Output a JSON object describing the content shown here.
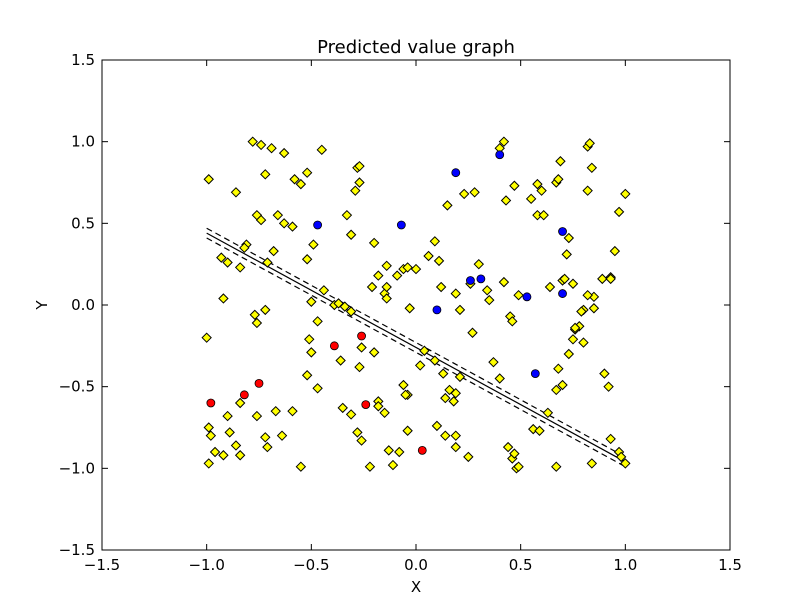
{
  "chart_data": {
    "type": "scatter",
    "title": "Predicted value graph",
    "xlabel": "X",
    "ylabel": "Y",
    "xlim": [
      -1.5,
      1.5
    ],
    "ylim": [
      -1.5,
      1.5
    ],
    "xticks": [
      "−1.5",
      "−1.0",
      "−0.5",
      "0.0",
      "0.5",
      "1.0",
      "1.5"
    ],
    "yticks": [
      "−1.5",
      "−1.0",
      "−0.5",
      "0.0",
      "0.5",
      "1.0",
      "1.5"
    ],
    "grid": false,
    "colors": {
      "yellow": "#ffff00",
      "blue": "#0000ff",
      "red": "#ff0000",
      "edge": "#000000"
    },
    "series": [
      {
        "marker": "diamond",
        "color": "#ffff00",
        "points": [
          [
            -0.99,
            0.77
          ],
          [
            -0.78,
            1.0
          ],
          [
            -0.74,
            0.98
          ],
          [
            -0.69,
            0.96
          ],
          [
            -0.63,
            0.93
          ],
          [
            -0.45,
            0.95
          ],
          [
            -0.28,
            0.84
          ],
          [
            -0.27,
            0.85
          ],
          [
            0.4,
            0.96
          ],
          [
            0.42,
            1.0
          ],
          [
            0.69,
            0.88
          ],
          [
            0.82,
            0.97
          ],
          [
            0.83,
            0.99
          ],
          [
            -0.86,
            0.69
          ],
          [
            -0.72,
            0.8
          ],
          [
            -0.58,
            0.77
          ],
          [
            -0.55,
            0.74
          ],
          [
            -0.52,
            0.81
          ],
          [
            -0.29,
            0.7
          ],
          [
            -0.27,
            0.75
          ],
          [
            -0.2,
            0.38
          ],
          [
            0.15,
            0.61
          ],
          [
            0.23,
            0.68
          ],
          [
            0.28,
            0.69
          ],
          [
            0.43,
            0.64
          ],
          [
            0.47,
            0.73
          ],
          [
            0.55,
            0.65
          ],
          [
            0.58,
            0.74
          ],
          [
            0.6,
            0.7
          ],
          [
            0.67,
            0.75
          ],
          [
            0.68,
            0.77
          ],
          [
            0.84,
            0.84
          ],
          [
            1.0,
            0.68
          ],
          [
            -0.76,
            0.55
          ],
          [
            -0.74,
            0.52
          ],
          [
            -0.66,
            0.55
          ],
          [
            -0.63,
            0.5
          ],
          [
            -0.59,
            0.48
          ],
          [
            -0.81,
            0.37
          ],
          [
            -0.82,
            0.35
          ],
          [
            -0.93,
            0.29
          ],
          [
            -0.9,
            0.26
          ],
          [
            -0.84,
            0.23
          ],
          [
            -0.71,
            0.26
          ],
          [
            -0.68,
            0.33
          ],
          [
            -0.52,
            0.28
          ],
          [
            -0.49,
            0.37
          ],
          [
            -0.33,
            0.55
          ],
          [
            -0.31,
            0.43
          ],
          [
            -0.21,
            0.11
          ],
          [
            -0.18,
            0.18
          ],
          [
            -0.14,
            0.24
          ],
          [
            -0.09,
            0.18
          ],
          [
            -0.06,
            0.22
          ],
          [
            -0.04,
            0.23
          ],
          [
            0.0,
            0.22
          ],
          [
            0.06,
            0.3
          ],
          [
            0.09,
            0.39
          ],
          [
            0.11,
            0.27
          ],
          [
            0.19,
            0.07
          ],
          [
            0.3,
            0.25
          ],
          [
            0.35,
            0.03
          ],
          [
            0.42,
            0.14
          ],
          [
            0.49,
            0.06
          ],
          [
            0.58,
            0.55
          ],
          [
            0.61,
            0.55
          ],
          [
            0.64,
            0.11
          ],
          [
            0.7,
            0.15
          ],
          [
            0.72,
            0.31
          ],
          [
            0.73,
            0.41
          ],
          [
            0.75,
            0.13
          ],
          [
            0.82,
            0.7
          ],
          [
            0.85,
            0.05
          ],
          [
            0.89,
            0.16
          ],
          [
            0.93,
            0.17
          ],
          [
            0.95,
            0.33
          ],
          [
            0.97,
            0.57
          ],
          [
            -0.92,
            0.04
          ],
          [
            -0.77,
            -0.06
          ],
          [
            -0.76,
            -0.11
          ],
          [
            -0.72,
            -0.03
          ],
          [
            -0.5,
            0.02
          ],
          [
            -0.47,
            -0.1
          ],
          [
            -0.44,
            0.09
          ],
          [
            -0.39,
            0.0
          ],
          [
            -0.37,
            0.01
          ],
          [
            -0.34,
            -0.01
          ],
          [
            -0.31,
            -0.04
          ],
          [
            -0.15,
            0.07
          ],
          [
            -0.14,
            0.11
          ],
          [
            -0.14,
            0.04
          ],
          [
            -0.03,
            -0.02
          ],
          [
            0.12,
            0.11
          ],
          [
            0.26,
            0.13
          ],
          [
            0.34,
            0.09
          ],
          [
            0.45,
            -0.07
          ],
          [
            0.46,
            -0.1
          ],
          [
            0.78,
            -0.13
          ],
          [
            0.8,
            -0.03
          ],
          [
            0.82,
            0.06
          ],
          [
            0.85,
            -0.02
          ],
          [
            0.76,
            -0.15
          ],
          [
            0.79,
            -0.04
          ],
          [
            -1.0,
            -0.2
          ],
          [
            -0.51,
            -0.21
          ],
          [
            -0.5,
            -0.29
          ],
          [
            -0.36,
            -0.34
          ],
          [
            -0.26,
            -0.26
          ],
          [
            -0.27,
            -0.38
          ],
          [
            -0.2,
            -0.29
          ],
          [
            -0.06,
            -0.49
          ],
          [
            -0.04,
            -0.55
          ],
          [
            0.02,
            -0.37
          ],
          [
            0.04,
            -0.28
          ],
          [
            0.09,
            -0.34
          ],
          [
            0.13,
            -0.42
          ],
          [
            0.16,
            -0.52
          ],
          [
            0.21,
            -0.44
          ],
          [
            0.21,
            -0.03
          ],
          [
            0.27,
            -0.17
          ],
          [
            0.37,
            -0.35
          ],
          [
            0.4,
            -0.45
          ],
          [
            0.56,
            -0.76
          ],
          [
            0.67,
            -0.52
          ],
          [
            0.68,
            -0.39
          ],
          [
            0.7,
            -0.49
          ],
          [
            0.73,
            -0.3
          ],
          [
            0.75,
            -0.21
          ],
          [
            0.76,
            -0.14
          ],
          [
            0.8,
            -0.23
          ],
          [
            0.9,
            -0.42
          ],
          [
            0.92,
            -0.5
          ],
          [
            -0.99,
            -0.97
          ],
          [
            -0.99,
            -0.75
          ],
          [
            -0.98,
            -0.8
          ],
          [
            -0.96,
            -0.9
          ],
          [
            -0.92,
            -0.92
          ],
          [
            -0.9,
            -0.68
          ],
          [
            -0.89,
            -0.78
          ],
          [
            -0.86,
            -0.86
          ],
          [
            -0.84,
            -0.6
          ],
          [
            -0.84,
            -0.92
          ],
          [
            -0.76,
            -0.68
          ],
          [
            -0.72,
            -0.81
          ],
          [
            -0.71,
            -0.87
          ],
          [
            -0.67,
            -0.65
          ],
          [
            -0.64,
            -0.8
          ],
          [
            -0.59,
            -0.65
          ],
          [
            -0.55,
            -0.99
          ],
          [
            -0.52,
            -0.43
          ],
          [
            -0.47,
            -0.51
          ],
          [
            -0.35,
            -0.63
          ],
          [
            -0.31,
            -0.67
          ],
          [
            -0.28,
            -0.78
          ],
          [
            -0.26,
            -0.83
          ],
          [
            -0.22,
            -0.99
          ],
          [
            -0.18,
            -0.59
          ],
          [
            -0.18,
            -0.62
          ],
          [
            -0.15,
            -0.66
          ],
          [
            -0.13,
            -0.89
          ],
          [
            -0.11,
            -0.98
          ],
          [
            -0.08,
            -0.9
          ],
          [
            -0.05,
            -0.55
          ],
          [
            -0.04,
            -0.77
          ],
          [
            0.1,
            -0.74
          ],
          [
            0.14,
            -0.57
          ],
          [
            0.14,
            -0.8
          ],
          [
            0.18,
            -0.59
          ],
          [
            0.19,
            -0.54
          ],
          [
            0.19,
            -0.87
          ],
          [
            0.19,
            -0.8
          ],
          [
            0.25,
            -0.93
          ],
          [
            0.44,
            -0.87
          ],
          [
            0.46,
            -0.94
          ],
          [
            0.47,
            -0.91
          ],
          [
            0.48,
            -1.0
          ],
          [
            0.49,
            -0.99
          ],
          [
            0.59,
            -0.77
          ],
          [
            0.63,
            -0.66
          ],
          [
            0.67,
            -0.99
          ],
          [
            0.84,
            -0.97
          ],
          [
            0.93,
            -0.82
          ],
          [
            0.97,
            -0.9
          ],
          [
            0.98,
            -0.93
          ],
          [
            1.0,
            -0.97
          ],
          [
            0.93,
            0.16
          ],
          [
            0.71,
            0.16
          ]
        ]
      },
      {
        "marker": "circle",
        "color": "#0000ff",
        "points": [
          [
            0.19,
            0.81
          ],
          [
            0.4,
            0.92
          ],
          [
            -0.47,
            0.49
          ],
          [
            -0.07,
            0.49
          ],
          [
            0.7,
            0.45
          ],
          [
            0.26,
            0.15
          ],
          [
            0.31,
            0.16
          ],
          [
            0.53,
            0.05
          ],
          [
            0.7,
            0.07
          ],
          [
            0.1,
            -0.03
          ],
          [
            0.57,
            -0.42
          ]
        ]
      },
      {
        "marker": "circle",
        "color": "#ff0000",
        "points": [
          [
            -0.39,
            -0.25
          ],
          [
            -0.26,
            -0.19
          ],
          [
            -0.75,
            -0.48
          ],
          [
            -0.82,
            -0.55
          ],
          [
            -0.98,
            -0.6
          ],
          [
            -0.24,
            -0.61
          ],
          [
            0.03,
            -0.89
          ]
        ]
      }
    ],
    "lines": [
      {
        "style": "solid",
        "points": [
          [
            -1.0,
            0.44
          ],
          [
            1.0,
            -0.96
          ]
        ]
      },
      {
        "style": "dashed",
        "points": [
          [
            -1.0,
            0.47
          ],
          [
            1.0,
            -0.93
          ]
        ]
      },
      {
        "style": "dashed",
        "points": [
          [
            -1.0,
            0.41
          ],
          [
            1.0,
            -0.99
          ]
        ]
      }
    ]
  }
}
